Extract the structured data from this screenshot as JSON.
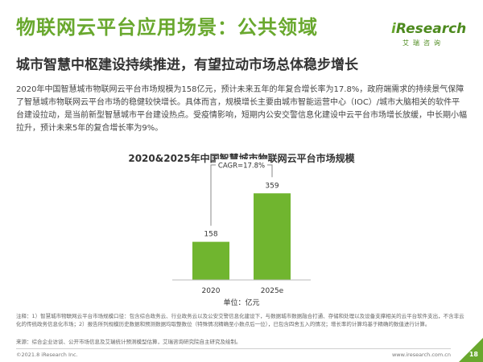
{
  "page": {
    "title": "物联网云平台应用场景：公共领域",
    "subtitle": "城市智慧中枢建设持续推进，有望拉动市场总体稳步增长",
    "body": "2020年中国智慧城市物联网云平台市场规模为158亿元，预计未来五年的年复合增长率为17.8%，政府端需求的持续景气保障了智慧城市物联网云平台市场的稳健较快增长。具体而言，规模增长主要由城市智能运营中心（IOC）/城市大脑相关的软件平台建设拉动，是当前新型智慧城市平台建设热点。受疫情影响，短期内公安交警信息化建设中云平台市场增长放缓，中长期小幅拉升，预计未来5年的复合增长率为9%。",
    "note": "注释：1）智慧城市物联网云平台市场规模口径：包含综合政务云、行业政务云以及公安交警信息化建设下，与数据城市数据融合打通、存储和处理以及设备支撑相关的云平台软件支出，不含非云化的传统政务信息化市场；2）报告所列规模历史数据和预测数据均取整数位（特殊情况精确至小数点后一位），已包含四舍五入的情况；增长率的计算均基于精确的数值进行计算。",
    "source": "来源：综合企业访谈、公开市场信息及艾瑞统计预测模型估算，艾瑞咨询研究院自主研究及绘制。",
    "copyright": "©2021.8 iResearch Inc.",
    "website": "www.iresearch.com.cn",
    "page_number": "18"
  },
  "logo": {
    "word_prefix": "i",
    "word_main": "Research",
    "sub": "艾瑞咨询"
  },
  "colors": {
    "accent": "#69a82e",
    "bar": "#70b52f",
    "text": "#333333"
  },
  "chart_data": {
    "type": "bar",
    "title": "2020&2025年中国智慧城市物联网云平台市场规模",
    "categories": [
      "2020",
      "2025e"
    ],
    "values": [
      158,
      359
    ],
    "data_labels": [
      "158",
      "359"
    ],
    "annotation": "CAGR=17.8%",
    "unit_label": "单位：亿元",
    "ylim": [
      0,
      400
    ],
    "grid": false,
    "legend": "none"
  }
}
